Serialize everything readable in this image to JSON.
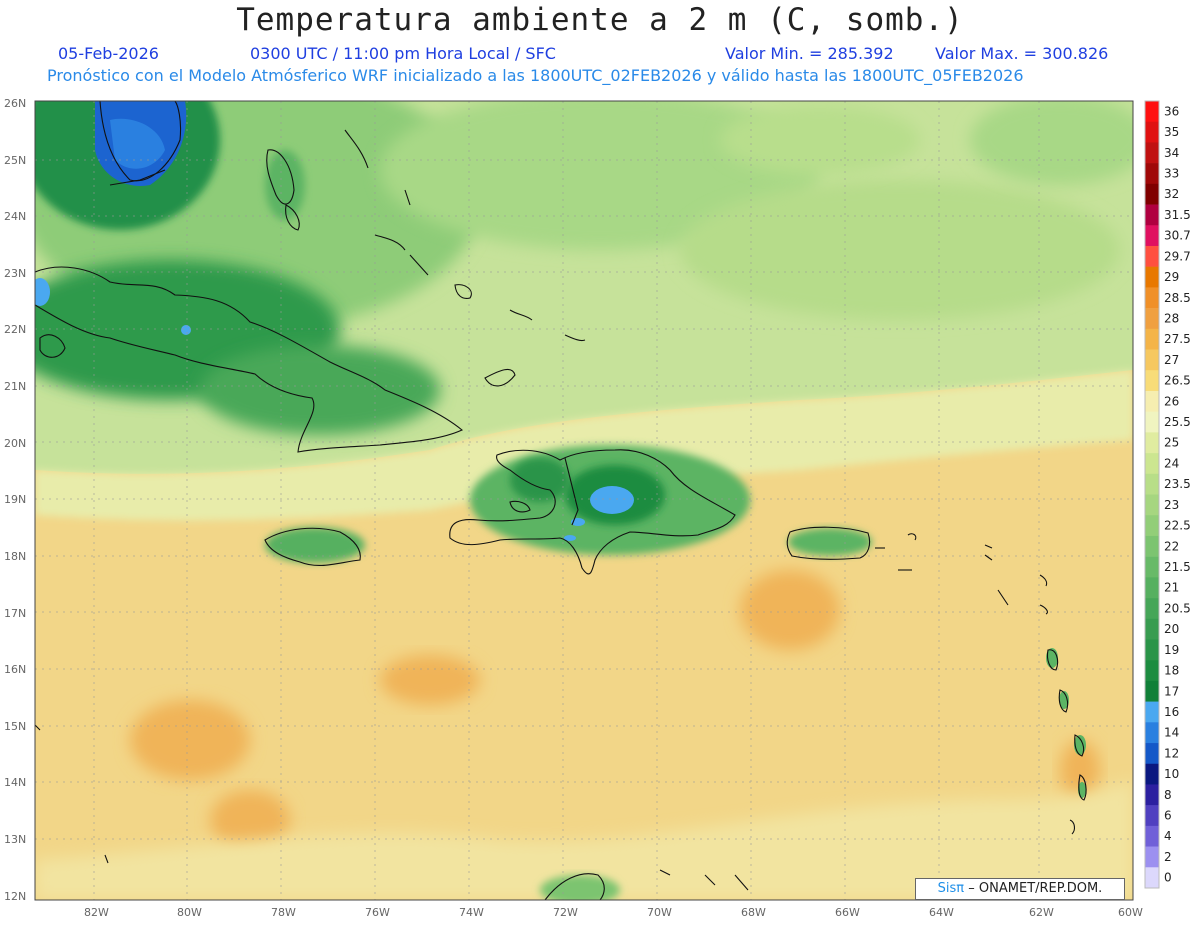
{
  "header": {
    "title": "Temperatura ambiente a 2 m (C, somb.)",
    "date": "05-Feb-2026",
    "time": "0300 UTC / 11:00 pm Hora Local / SFC",
    "min_label": "Valor Min. = 285.392",
    "max_label": "Valor Max. = 300.826",
    "forecast_note": "Pronóstico con el Modelo Atmósferico WRF inicializado a las 1800UTC_02FEB2026 y válido hasta las  1800UTC_05FEB2026"
  },
  "map": {
    "lat_labels": [
      "26N",
      "25N",
      "24N",
      "23N",
      "22N",
      "21N",
      "20N",
      "19N",
      "18N",
      "17N",
      "16N",
      "15N",
      "14N",
      "13N",
      "12N"
    ],
    "lon_labels": [
      "82W",
      "80W",
      "78W",
      "76W",
      "74W",
      "72W",
      "70W",
      "68W",
      "66W",
      "64W",
      "62W",
      "60W"
    ]
  },
  "legend": {
    "levels": [
      {
        "label": "36",
        "color": "#ff1010"
      },
      {
        "label": "35",
        "color": "#e01010"
      },
      {
        "label": "34",
        "color": "#c01010"
      },
      {
        "label": "33",
        "color": "#a00808"
      },
      {
        "label": "32",
        "color": "#800000"
      },
      {
        "label": "31.5",
        "color": "#b00040"
      },
      {
        "label": "30.7",
        "color": "#e01060"
      },
      {
        "label": "29.7",
        "color": "#ff5040"
      },
      {
        "label": "29",
        "color": "#e87800"
      },
      {
        "label": "28.5",
        "color": "#f09028"
      },
      {
        "label": "28",
        "color": "#f0a040"
      },
      {
        "label": "27.5",
        "color": "#f4b448"
      },
      {
        "label": "27",
        "color": "#f6c860"
      },
      {
        "label": "26.5",
        "color": "#f8dc78"
      },
      {
        "label": "26",
        "color": "#f6eeb0"
      },
      {
        "label": "25.5",
        "color": "#f0f4c0"
      },
      {
        "label": "25",
        "color": "#e0eca0"
      },
      {
        "label": "24",
        "color": "#cce690"
      },
      {
        "label": "23.5",
        "color": "#b8de88"
      },
      {
        "label": "23",
        "color": "#a6d680"
      },
      {
        "label": "22.5",
        "color": "#92ce78"
      },
      {
        "label": "22",
        "color": "#7cc470"
      },
      {
        "label": "21.5",
        "color": "#68ba68"
      },
      {
        "label": "21",
        "color": "#56b060"
      },
      {
        "label": "20.5",
        "color": "#46a658"
      },
      {
        "label": "20",
        "color": "#389c50"
      },
      {
        "label": "19",
        "color": "#2a9448"
      },
      {
        "label": "18",
        "color": "#1c8c40"
      },
      {
        "label": "17",
        "color": "#108038"
      },
      {
        "label": "16",
        "color": "#4aa8f0"
      },
      {
        "label": "14",
        "color": "#2a80e0"
      },
      {
        "label": "12",
        "color": "#1458c8"
      },
      {
        "label": "10",
        "color": "#0a1880"
      },
      {
        "label": "8",
        "color": "#2c20a0"
      },
      {
        "label": "6",
        "color": "#5040c0"
      },
      {
        "label": "4",
        "color": "#7060d8"
      },
      {
        "label": "2",
        "color": "#9c90f0"
      },
      {
        "label": "0",
        "color": "#dcd8fc"
      }
    ]
  },
  "credit": {
    "sis": "Sisπ",
    "text": "– ONAMET/REP.DOM."
  }
}
